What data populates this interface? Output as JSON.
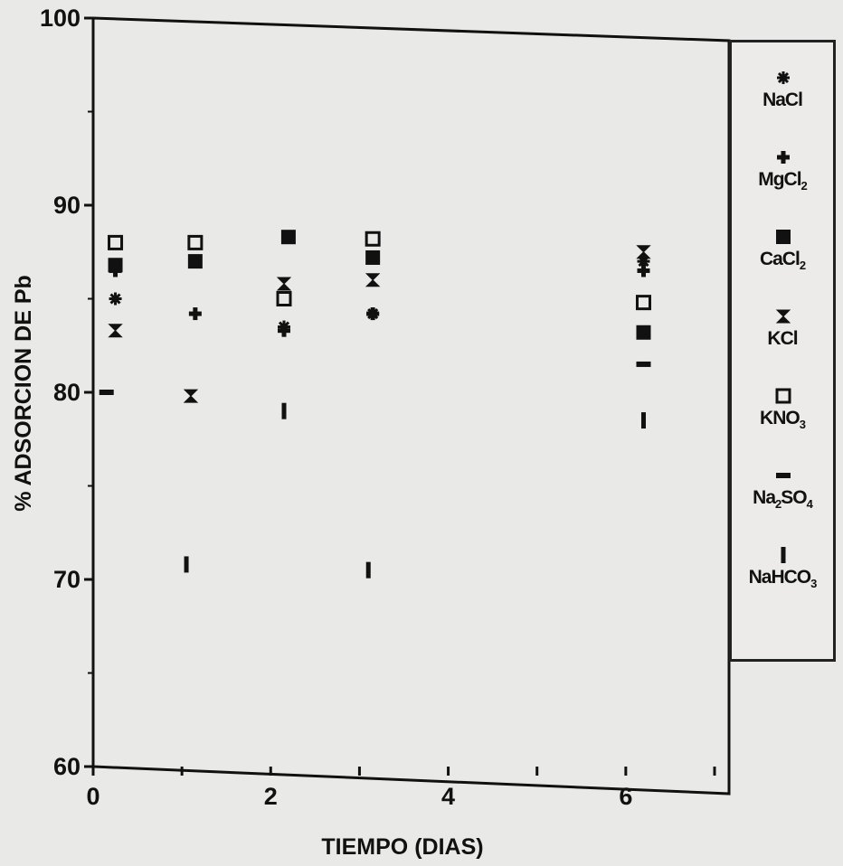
{
  "chart_data": {
    "type": "scatter",
    "title": "",
    "xlabel": "TIEMPO (DIAS)",
    "ylabel": "% ADSORCION DE Pb",
    "xlim": [
      0,
      7
    ],
    "ylim": [
      60,
      100
    ],
    "xticks": [
      0,
      2,
      4,
      6
    ],
    "yticks": [
      60,
      70,
      80,
      90,
      100
    ],
    "grid": false,
    "legend_position": "right",
    "series": [
      {
        "name": "NaCl",
        "marker": "asterisk",
        "points": [
          [
            0.25,
            85.0
          ],
          [
            2.15,
            83.5
          ],
          [
            3.15,
            84.2
          ],
          [
            6.2,
            87.0
          ]
        ]
      },
      {
        "name": "MgCl2",
        "marker": "plus",
        "points": [
          [
            0.25,
            86.5
          ],
          [
            1.15,
            84.2
          ],
          [
            2.15,
            83.3
          ],
          [
            3.15,
            84.2
          ],
          [
            6.2,
            86.5
          ]
        ]
      },
      {
        "name": "CaCl2",
        "marker": "filled-square",
        "points": [
          [
            0.25,
            86.8
          ],
          [
            1.15,
            87.0
          ],
          [
            2.2,
            88.3
          ],
          [
            3.15,
            87.2
          ],
          [
            6.2,
            83.2
          ]
        ]
      },
      {
        "name": "KCl",
        "marker": "hourglass",
        "points": [
          [
            0.25,
            83.3
          ],
          [
            1.1,
            79.8
          ],
          [
            2.15,
            85.8
          ],
          [
            3.15,
            86.0
          ],
          [
            6.2,
            87.5
          ]
        ]
      },
      {
        "name": "KNO3",
        "marker": "open-square",
        "points": [
          [
            0.25,
            88.0
          ],
          [
            1.15,
            88.0
          ],
          [
            2.15,
            85.0
          ],
          [
            3.15,
            88.2
          ],
          [
            6.2,
            84.8
          ]
        ]
      },
      {
        "name": "Na2SO4",
        "marker": "dash",
        "points": [
          [
            0.15,
            80.0
          ],
          [
            6.2,
            81.5
          ]
        ]
      },
      {
        "name": "NaHCO3",
        "marker": "bar",
        "points": [
          [
            1.05,
            70.8
          ],
          [
            2.15,
            79.0
          ],
          [
            3.1,
            70.5
          ],
          [
            6.2,
            78.5
          ]
        ]
      }
    ]
  },
  "legend": {
    "items": [
      {
        "label": "NaCl"
      },
      {
        "label_html": "MgCl<sub>2</sub>",
        "label": "MgCl2"
      },
      {
        "label_html": "CaCl<sub>2</sub>",
        "label": "CaCl2"
      },
      {
        "label": "KCl"
      },
      {
        "label_html": "KNO<sub>3</sub>",
        "label": "KNO3"
      },
      {
        "label_html": "Na<sub>2</sub>SO<sub>4</sub>",
        "label": "Na2SO4"
      },
      {
        "label_html": "NaHCO<sub>3</sub>",
        "label": "NaHCO3"
      }
    ]
  },
  "colors": {
    "ink": "#111111",
    "background": "#e9e9e7"
  }
}
